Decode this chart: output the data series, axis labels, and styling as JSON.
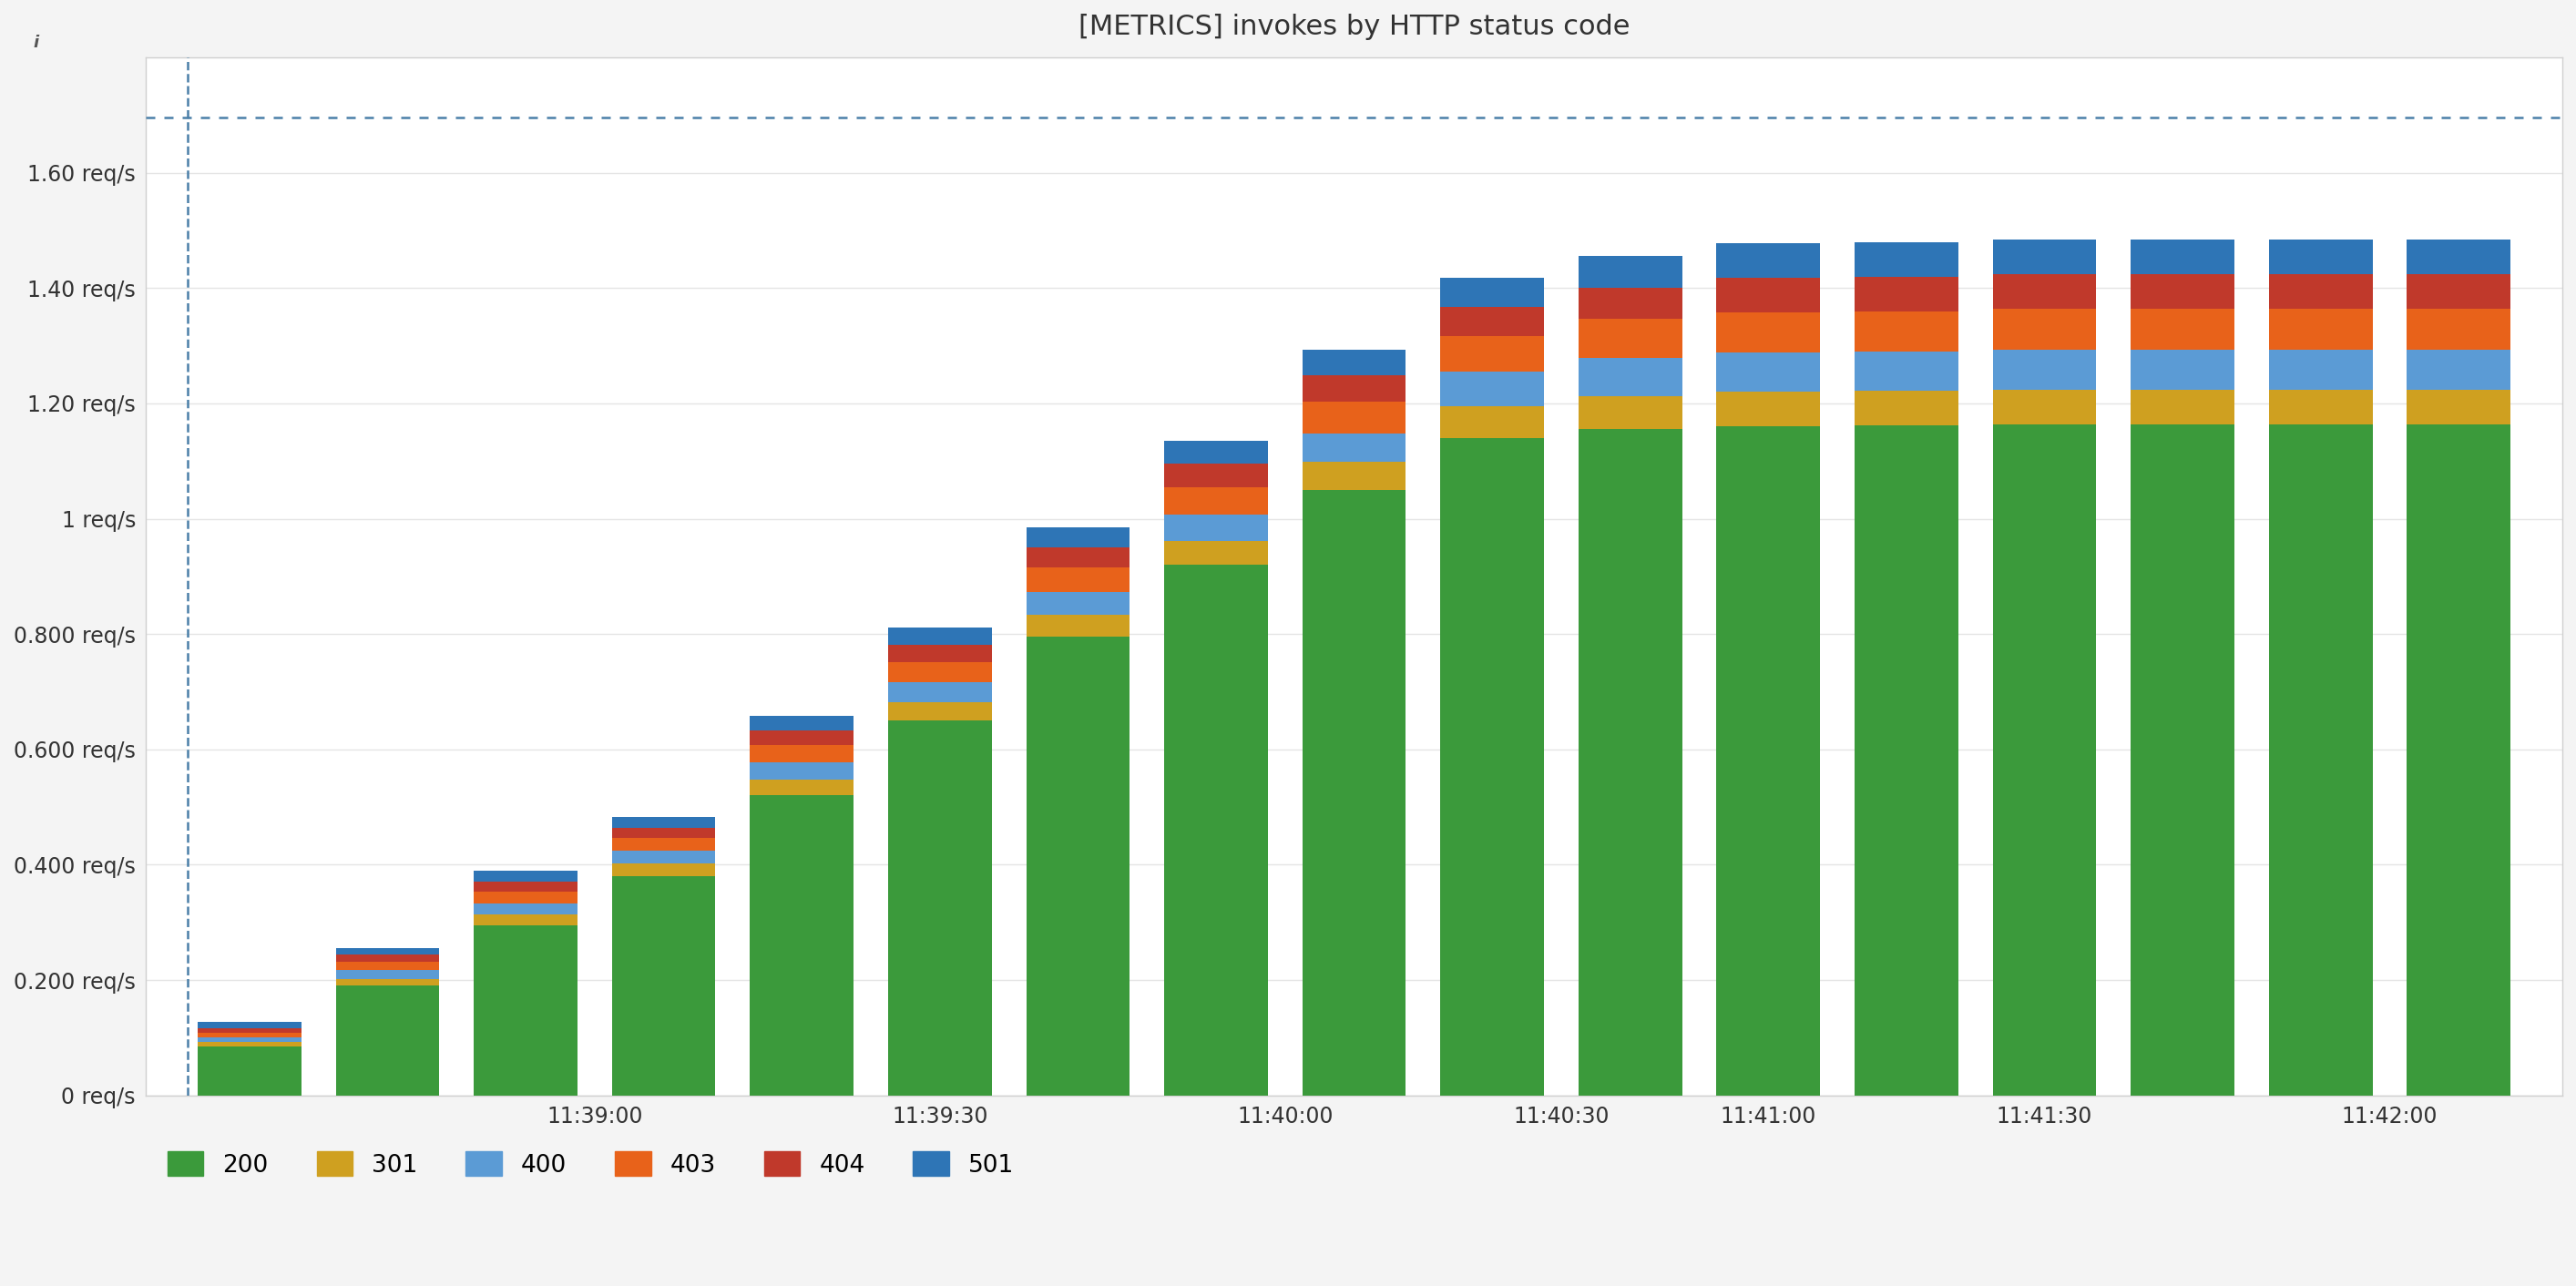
{
  "title": "[METRICS] invokes by HTTP status code",
  "background_color": "#ffffff",
  "ylim": [
    0,
    1.8
  ],
  "yticks": [
    0,
    0.2,
    0.4,
    0.6,
    0.8,
    1.0,
    1.2,
    1.4,
    1.6
  ],
  "ytick_labels": [
    "0 req/s",
    "0.200 req/s",
    "0.400 req/s",
    "0.600 req/s",
    "0.800 req/s",
    "1 req/s",
    "1.20 req/s",
    "1.40 req/s",
    "1.60 req/s"
  ],
  "dotted_line_y": 1.695,
  "xtick_labels": [
    "11:39:00",
    "11:39:30",
    "11:40:00",
    "11:40:30",
    "11:41:00",
    "11:41:30",
    "11:42:00"
  ],
  "legend_labels": [
    "200",
    "301",
    "400",
    "403",
    "404",
    "501"
  ],
  "colors": {
    "200": "#3b9a3b",
    "301": "#cfa020",
    "400": "#5b9bd5",
    "403": "#e8621a",
    "404": "#c0392b",
    "501": "#2e75b6"
  },
  "bar_width": 0.75,
  "bars": [
    {
      "200": 0.085,
      "301": 0.008,
      "400": 0.008,
      "403": 0.008,
      "404": 0.008,
      "501": 0.01
    },
    {
      "200": 0.19,
      "301": 0.012,
      "400": 0.015,
      "403": 0.015,
      "404": 0.012,
      "501": 0.012
    },
    {
      "200": 0.295,
      "301": 0.018,
      "400": 0.02,
      "403": 0.02,
      "404": 0.018,
      "501": 0.018
    },
    {
      "200": 0.38,
      "301": 0.022,
      "400": 0.022,
      "403": 0.022,
      "404": 0.018,
      "501": 0.018
    },
    {
      "200": 0.52,
      "301": 0.028,
      "400": 0.03,
      "403": 0.03,
      "404": 0.025,
      "501": 0.025
    },
    {
      "200": 0.65,
      "301": 0.032,
      "400": 0.035,
      "403": 0.035,
      "404": 0.03,
      "501": 0.03
    },
    {
      "200": 0.795,
      "301": 0.038,
      "400": 0.04,
      "403": 0.042,
      "404": 0.035,
      "501": 0.035
    },
    {
      "200": 0.92,
      "301": 0.042,
      "400": 0.045,
      "403": 0.048,
      "404": 0.04,
      "501": 0.04
    },
    {
      "200": 1.05,
      "301": 0.048,
      "400": 0.05,
      "403": 0.055,
      "404": 0.045,
      "501": 0.045
    },
    {
      "200": 1.14,
      "301": 0.055,
      "400": 0.06,
      "403": 0.062,
      "404": 0.05,
      "501": 0.05
    },
    {
      "200": 1.155,
      "301": 0.058,
      "400": 0.065,
      "403": 0.068,
      "404": 0.055,
      "501": 0.055
    },
    {
      "200": 1.16,
      "301": 0.06,
      "400": 0.068,
      "403": 0.07,
      "404": 0.06,
      "501": 0.06
    },
    {
      "200": 1.162,
      "301": 0.06,
      "400": 0.068,
      "403": 0.07,
      "404": 0.06,
      "501": 0.06
    },
    {
      "200": 1.163,
      "301": 0.061,
      "400": 0.069,
      "403": 0.071,
      "404": 0.06,
      "501": 0.06
    },
    {
      "200": 1.163,
      "301": 0.061,
      "400": 0.069,
      "403": 0.071,
      "404": 0.06,
      "501": 0.06
    },
    {
      "200": 1.163,
      "301": 0.061,
      "400": 0.069,
      "403": 0.071,
      "404": 0.06,
      "501": 0.06
    },
    {
      "200": 1.163,
      "301": 0.061,
      "400": 0.069,
      "403": 0.071,
      "404": 0.06,
      "501": 0.06
    }
  ],
  "n_bars": 17,
  "dashed_vline_color": "#4a7fa8",
  "dotted_hline_color": "#4a7fa8",
  "grid_color": "#e5e5e5",
  "title_fontsize": 22,
  "tick_fontsize": 17,
  "legend_fontsize": 19,
  "outer_bg": "#f4f4f4",
  "border_color": "#d0d0d0"
}
